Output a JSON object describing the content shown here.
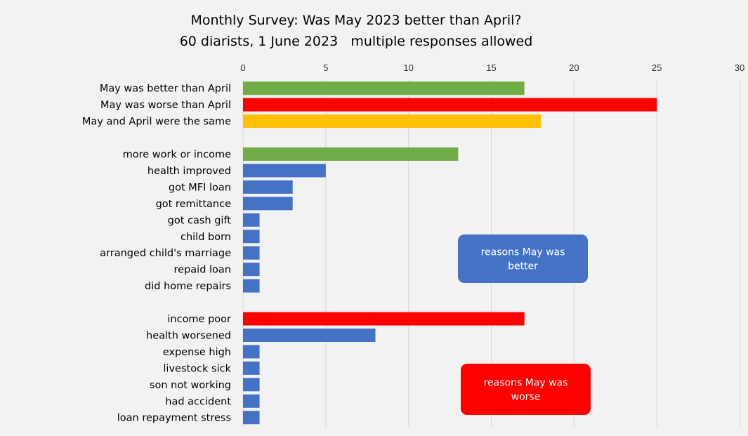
{
  "chart_data": {
    "type": "bar",
    "orientation": "horizontal",
    "title": "Monthly Survey: Was May 2023 better than April?",
    "subtitle": "60 diarists, 1 June 2023   multiple responses allowed",
    "xlim": [
      0,
      30
    ],
    "xticks": [
      0,
      5,
      10,
      15,
      20,
      25,
      30
    ],
    "x_axis_position": "top",
    "grid": true,
    "categories": [
      "May was better than April",
      "May was worse than April",
      "May and April were the same",
      "",
      "more work or income",
      "health improved",
      "got MFI loan",
      "got remittance",
      "got cash gift",
      "child born",
      "arranged child's marriage",
      "repaid loan",
      "did home repairs",
      "",
      "income poor",
      "health worsened",
      "expense high",
      "livestock sick",
      "son not working",
      "had accident",
      "loan repayment stress"
    ],
    "values": [
      17,
      25,
      18,
      null,
      13,
      5,
      3,
      3,
      1,
      1,
      1,
      1,
      1,
      null,
      17,
      8,
      1,
      1,
      1,
      1,
      1
    ],
    "colors": [
      "#70ad47",
      "#ff0000",
      "#ffc000",
      null,
      "#70ad47",
      "#4472c4",
      "#4472c4",
      "#4472c4",
      "#4472c4",
      "#4472c4",
      "#4472c4",
      "#4472c4",
      "#4472c4",
      null,
      "#ff0000",
      "#4472c4",
      "#4472c4",
      "#4472c4",
      "#4472c4",
      "#4472c4",
      "#4472c4"
    ],
    "annotations": [
      {
        "text_lines": [
          "reasons May was",
          "better"
        ],
        "color": "#4472c4"
      },
      {
        "text_lines": [
          "reasons May  was",
          "worse"
        ],
        "color": "#ff0000"
      }
    ]
  }
}
